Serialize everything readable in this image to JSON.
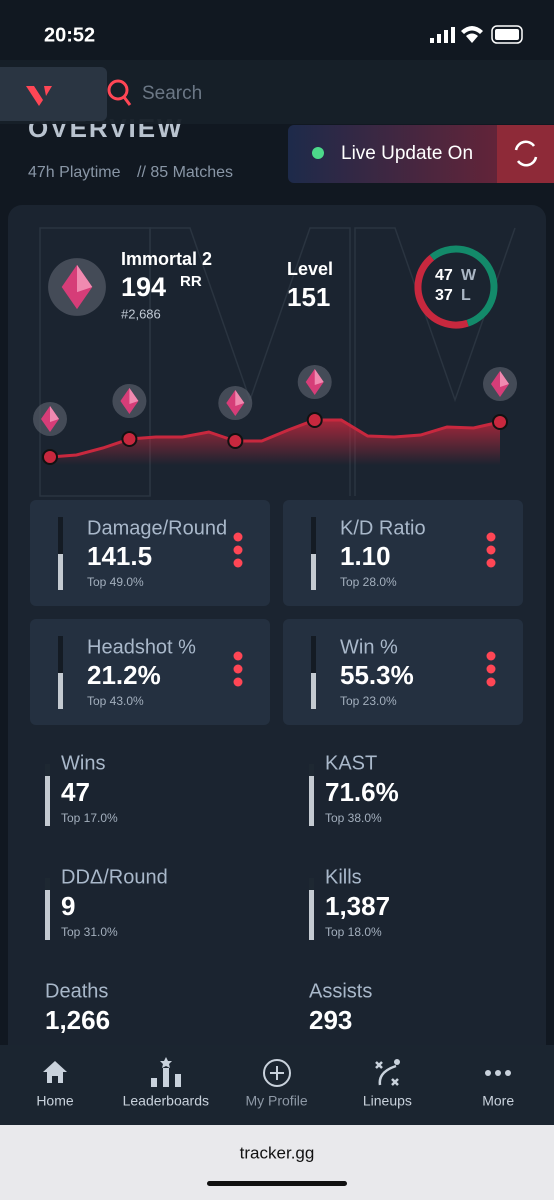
{
  "status": {
    "time": "20:52"
  },
  "search": {
    "placeholder": "Search"
  },
  "overview": {
    "heading": "OVERVIEW",
    "playtime": "47h Playtime",
    "matches": "// 85 Matches",
    "live": "Live Update On"
  },
  "rank": {
    "name": "Immortal 2",
    "rr": "194",
    "rr_unit": "RR",
    "position": "#2,686"
  },
  "level": {
    "label": "Level",
    "value": "151"
  },
  "record": {
    "wins": 47,
    "wins_label": "W",
    "losses": 37,
    "losses_label": "L"
  },
  "rr_trend": {
    "values": [
      8,
      10,
      17,
      26,
      28,
      28,
      33,
      24,
      24,
      35,
      45,
      45,
      29,
      28,
      30,
      38,
      37,
      43
    ],
    "ylim": [
      0,
      60
    ],
    "markers": [
      0,
      3,
      7,
      10,
      17
    ]
  },
  "cards": [
    {
      "label": "Damage/Round",
      "value": "141.5",
      "top": "Top 49.0%"
    },
    {
      "label": "K/D Ratio",
      "value": "1.10",
      "top": "Top 28.0%"
    },
    {
      "label": "Headshot %",
      "value": "21.2%",
      "top": "Top 43.0%"
    },
    {
      "label": "Win %",
      "value": "55.3%",
      "top": "Top 23.0%"
    }
  ],
  "stats": [
    {
      "label": "Wins",
      "value": "47",
      "top": "Top 17.0%"
    },
    {
      "label": "KAST",
      "value": "71.6%",
      "top": "Top 38.0%"
    },
    {
      "label": "DDΔ/Round",
      "value": "9",
      "top": "Top 31.0%"
    },
    {
      "label": "Kills",
      "value": "1,387",
      "top": "Top 18.0%"
    },
    {
      "label": "Deaths",
      "value": "1,266"
    },
    {
      "label": "Assists",
      "value": "293"
    }
  ],
  "nav": [
    "Home",
    "Leaderboards",
    "My Profile",
    "Lineups",
    "More"
  ],
  "browser": {
    "url": "tracker.gg"
  }
}
